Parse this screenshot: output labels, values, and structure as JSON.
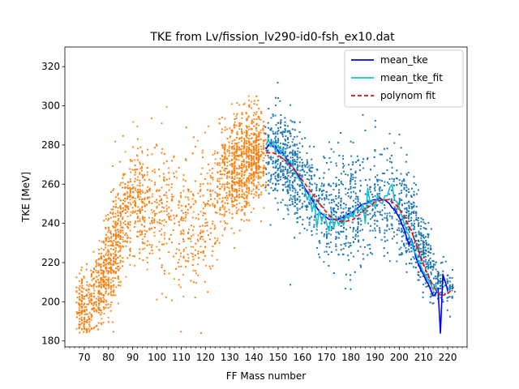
{
  "chart_data": {
    "type": "scatter",
    "title": "TKE from  Lv/fission_lv290-id0-fsh_ex10.dat",
    "xlabel": "FF Mass number",
    "ylabel": "TKE [MeV]",
    "xlim": [
      62,
      228
    ],
    "ylim": [
      177,
      330
    ],
    "x_ticks": [
      70,
      80,
      90,
      100,
      110,
      120,
      130,
      140,
      150,
      160,
      170,
      180,
      190,
      200,
      210,
      220
    ],
    "y_ticks": [
      180,
      200,
      220,
      240,
      260,
      280,
      300,
      320
    ],
    "x_minor_step": 2,
    "grid": false,
    "legend_position": "top-right",
    "scatter_series": [
      {
        "role": "light fragments",
        "color": "#ff7f0e",
        "x_range": [
          67,
          145
        ],
        "approx_point_count": 4200,
        "density_profile": [
          {
            "x": 72,
            "y_center": 198,
            "y_spread": 10
          },
          {
            "x": 78,
            "y_center": 213,
            "y_spread": 13
          },
          {
            "x": 82,
            "y_center": 226,
            "y_spread": 16
          },
          {
            "x": 85,
            "y_center": 238,
            "y_spread": 16
          },
          {
            "x": 90,
            "y_center": 252,
            "y_spread": 14
          },
          {
            "x": 100,
            "y_center": 246,
            "y_spread": 20
          },
          {
            "x": 110,
            "y_center": 236,
            "y_spread": 22
          },
          {
            "x": 120,
            "y_center": 245,
            "y_spread": 22
          },
          {
            "x": 130,
            "y_center": 265,
            "y_spread": 16
          },
          {
            "x": 138,
            "y_center": 273,
            "y_spread": 14
          },
          {
            "x": 145,
            "y_center": 276,
            "y_spread": 14
          }
        ]
      },
      {
        "role": "heavy fragments",
        "color": "#1f77b4",
        "x_range": [
          145,
          223
        ],
        "approx_point_count": 4200,
        "density_profile": [
          {
            "x": 145,
            "y_center": 276,
            "y_spread": 14
          },
          {
            "x": 152,
            "y_center": 273,
            "y_spread": 14
          },
          {
            "x": 160,
            "y_center": 262,
            "y_spread": 16
          },
          {
            "x": 170,
            "y_center": 244,
            "y_spread": 16
          },
          {
            "x": 180,
            "y_center": 246,
            "y_spread": 17
          },
          {
            "x": 190,
            "y_center": 252,
            "y_spread": 16
          },
          {
            "x": 200,
            "y_center": 250,
            "y_spread": 15
          },
          {
            "x": 206,
            "y_center": 236,
            "y_spread": 13
          },
          {
            "x": 210,
            "y_center": 225,
            "y_spread": 11
          },
          {
            "x": 215,
            "y_center": 212,
            "y_spread": 8
          },
          {
            "x": 220,
            "y_center": 207,
            "y_spread": 6
          }
        ]
      }
    ],
    "series": [
      {
        "name": "mean_tke",
        "color": "#0000ff",
        "style": "solid",
        "points": [
          [
            145,
            278
          ],
          [
            146,
            280
          ],
          [
            147,
            281
          ],
          [
            148,
            279
          ],
          [
            149,
            279
          ],
          [
            150,
            277
          ],
          [
            151,
            276
          ],
          [
            152,
            276
          ],
          [
            153,
            274
          ],
          [
            154,
            272
          ],
          [
            155,
            270
          ],
          [
            156,
            269
          ],
          [
            157,
            267
          ],
          [
            158,
            265
          ],
          [
            159,
            263
          ],
          [
            160,
            260
          ],
          [
            161,
            258
          ],
          [
            162,
            256
          ],
          [
            163,
            254
          ],
          [
            164,
            252
          ],
          [
            165,
            250
          ],
          [
            166,
            248
          ],
          [
            167,
            246
          ],
          [
            168,
            245
          ],
          [
            169,
            244
          ],
          [
            170,
            243
          ],
          [
            171,
            242
          ],
          [
            172,
            242
          ],
          [
            173,
            242
          ],
          [
            174,
            242
          ],
          [
            175,
            242
          ],
          [
            176,
            243
          ],
          [
            177,
            243
          ],
          [
            178,
            244
          ],
          [
            179,
            245
          ],
          [
            180,
            245
          ],
          [
            181,
            246
          ],
          [
            182,
            247
          ],
          [
            183,
            248
          ],
          [
            184,
            249
          ],
          [
            185,
            250
          ],
          [
            186,
            250
          ],
          [
            187,
            251
          ],
          [
            188,
            251
          ],
          [
            189,
            252
          ],
          [
            190,
            252
          ],
          [
            191,
            252
          ],
          [
            192,
            253
          ],
          [
            193,
            252
          ],
          [
            194,
            252
          ],
          [
            195,
            251
          ],
          [
            196,
            250
          ],
          [
            197,
            248
          ],
          [
            198,
            247
          ],
          [
            199,
            245
          ],
          [
            200,
            243
          ],
          [
            201,
            240
          ],
          [
            202,
            237
          ],
          [
            203,
            233
          ],
          [
            204,
            229
          ],
          [
            205,
            232
          ],
          [
            206,
            227
          ],
          [
            207,
            222
          ],
          [
            208,
            219
          ],
          [
            209,
            216
          ],
          [
            210,
            214
          ],
          [
            211,
            211
          ],
          [
            212,
            209
          ],
          [
            213,
            206
          ],
          [
            214,
            203
          ],
          [
            215,
            204
          ],
          [
            216,
            207
          ],
          [
            217,
            184
          ],
          [
            218,
            214
          ],
          [
            219,
            210
          ],
          [
            220,
            206
          ]
        ]
      },
      {
        "name": "mean_tke_fit",
        "color": "#17becf",
        "style": "solid",
        "points": [
          [
            145,
            280
          ],
          [
            146,
            283
          ],
          [
            147,
            279
          ],
          [
            148,
            282
          ],
          [
            149,
            276
          ],
          [
            150,
            280
          ],
          [
            151,
            276
          ],
          [
            152,
            278
          ],
          [
            153,
            273
          ],
          [
            154,
            271
          ],
          [
            155,
            272
          ],
          [
            156,
            269
          ],
          [
            157,
            266
          ],
          [
            158,
            264
          ],
          [
            159,
            262
          ],
          [
            160,
            261
          ],
          [
            161,
            257
          ],
          [
            162,
            252
          ],
          [
            163,
            255
          ],
          [
            164,
            246
          ],
          [
            165,
            251
          ],
          [
            166,
            238
          ],
          [
            167,
            247
          ],
          [
            168,
            241
          ],
          [
            169,
            245
          ],
          [
            170,
            240
          ],
          [
            171,
            236
          ],
          [
            172,
            245
          ],
          [
            173,
            238
          ],
          [
            174,
            243
          ],
          [
            175,
            239
          ],
          [
            176,
            243
          ],
          [
            177,
            239
          ],
          [
            178,
            245
          ],
          [
            179,
            242
          ],
          [
            180,
            246
          ],
          [
            181,
            243
          ],
          [
            182,
            248
          ],
          [
            183,
            246
          ],
          [
            184,
            247
          ],
          [
            185,
            250
          ],
          [
            186,
            240
          ],
          [
            187,
            258
          ],
          [
            188,
            250
          ],
          [
            189,
            252
          ],
          [
            190,
            248
          ],
          [
            191,
            254
          ],
          [
            192,
            251
          ],
          [
            193,
            250
          ],
          [
            194,
            254
          ],
          [
            195,
            254
          ],
          [
            196,
            258
          ],
          [
            197,
            260
          ],
          [
            198,
            252
          ],
          [
            199,
            251
          ],
          [
            200,
            248
          ],
          [
            201,
            244
          ],
          [
            202,
            240
          ],
          [
            203,
            236
          ],
          [
            204,
            234
          ],
          [
            205,
            231
          ],
          [
            206,
            226
          ],
          [
            207,
            224
          ],
          [
            208,
            220
          ],
          [
            209,
            218
          ],
          [
            210,
            215
          ],
          [
            211,
            213
          ],
          [
            212,
            211
          ],
          [
            213,
            209
          ],
          [
            214,
            206
          ],
          [
            215,
            209
          ],
          [
            216,
            204
          ],
          [
            217,
            205
          ]
        ]
      },
      {
        "name": "polynom fit",
        "color": "#ff0000",
        "style": "dashed",
        "points": [
          [
            145,
            276
          ],
          [
            148,
            276
          ],
          [
            151,
            274
          ],
          [
            154,
            271
          ],
          [
            157,
            267
          ],
          [
            160,
            262
          ],
          [
            163,
            257
          ],
          [
            166,
            252
          ],
          [
            169,
            247
          ],
          [
            172,
            243
          ],
          [
            175,
            241
          ],
          [
            178,
            241
          ],
          [
            181,
            242
          ],
          [
            184,
            245
          ],
          [
            187,
            248
          ],
          [
            190,
            251
          ],
          [
            193,
            252
          ],
          [
            196,
            252
          ],
          [
            199,
            249
          ],
          [
            202,
            244
          ],
          [
            205,
            236
          ],
          [
            208,
            226
          ],
          [
            211,
            216
          ],
          [
            214,
            208
          ],
          [
            217,
            203
          ],
          [
            220,
            204
          ],
          [
            222,
            207
          ]
        ]
      }
    ]
  }
}
